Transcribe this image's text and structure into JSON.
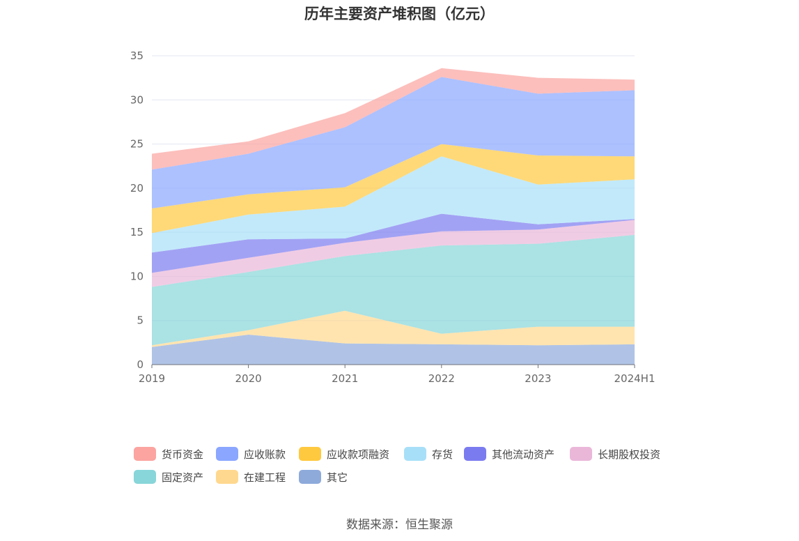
{
  "title": "历年主要资产堆积图（亿元）",
  "source": "数据来源：恒生聚源",
  "chart_data": {
    "type": "area",
    "stacked": true,
    "categories": [
      "2019",
      "2020",
      "2021",
      "2022",
      "2023",
      "2024H1"
    ],
    "ylim": [
      0,
      35
    ],
    "yticks": [
      0,
      5,
      10,
      15,
      20,
      25,
      30,
      35
    ],
    "grid": true,
    "legend_position": "bottom",
    "series": [
      {
        "name": "其它",
        "color": "#8eaadb",
        "values": [
          2.0,
          3.4,
          2.4,
          2.3,
          2.2,
          2.3
        ]
      },
      {
        "name": "在建工程",
        "color": "#ffd88f",
        "values": [
          0.2,
          0.5,
          3.7,
          1.2,
          2.1,
          2.0
        ]
      },
      {
        "name": "固定资产",
        "color": "#88d6d9",
        "values": [
          6.6,
          6.6,
          6.2,
          10.0,
          9.4,
          10.4
        ]
      },
      {
        "name": "长期股权投资",
        "color": "#eab7d9",
        "values": [
          1.6,
          1.6,
          1.5,
          1.6,
          1.6,
          1.7
        ]
      },
      {
        "name": "其他流动资产",
        "color": "#7b7bf0",
        "values": [
          2.3,
          2.1,
          0.5,
          2.0,
          0.6,
          0.1
        ]
      },
      {
        "name": "存货",
        "color": "#a8dff8",
        "values": [
          2.2,
          2.8,
          3.6,
          6.5,
          4.5,
          4.5
        ]
      },
      {
        "name": "应收款项融资",
        "color": "#ffc93f",
        "values": [
          2.8,
          2.3,
          2.2,
          1.4,
          3.3,
          2.6
        ]
      },
      {
        "name": "应收账款",
        "color": "#8aa6ff",
        "values": [
          4.4,
          4.6,
          6.8,
          7.6,
          7.0,
          7.5
        ]
      },
      {
        "name": "货币资金",
        "color": "#fba4a0",
        "values": [
          1.8,
          1.4,
          1.6,
          1.0,
          1.8,
          1.2
        ]
      }
    ],
    "legend_order": [
      "货币资金",
      "应收账款",
      "应收款项融资",
      "存货",
      "其他流动资产",
      "长期股权投资",
      "固定资产",
      "在建工程",
      "其它"
    ]
  }
}
